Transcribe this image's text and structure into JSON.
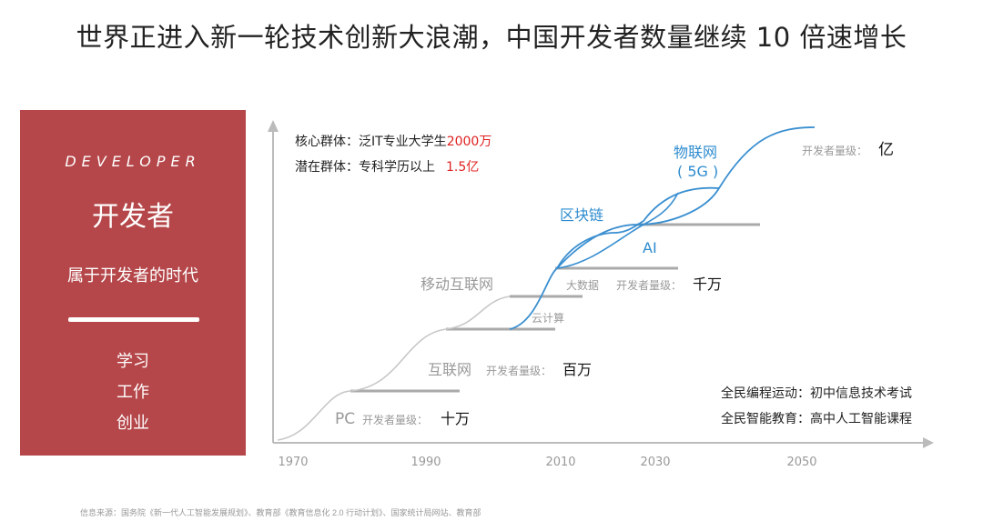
{
  "title": "世界正进入新一轮技术创新大浪潮，中国开发者数量继续 10 倍速增长",
  "panel": {
    "en_label": "DEVELOPER",
    "cn_label": "开发者",
    "era": "属于开发者的时代",
    "words": [
      "学习",
      "工作",
      "创业"
    ]
  },
  "groups": {
    "core_label": "核心群体：泛IT专业大学生",
    "core_value": "2000万",
    "potential_label": "潜在群体：专科学历以上",
    "potential_value": "1.5亿"
  },
  "x_axis": [
    "1970",
    "1990",
    "2010",
    "2030",
    "2050"
  ],
  "stages": {
    "pc": "PC",
    "internet": "互联网",
    "mobile": "移动互联网",
    "cloud": "云计算",
    "bigdata": "大数据",
    "blockchain": "区块链",
    "ai": "AI",
    "iot": "物联网",
    "iot_5g": "( 5G )"
  },
  "scale": {
    "prefix": "开发者量级：",
    "level_1": "十万",
    "level_2": "百万",
    "level_3": "千万",
    "level_4": "亿"
  },
  "notes": {
    "coding": "全民编程运动：初中信息技术考试",
    "ai_edu": "全民智能教育：高中人工智能课程"
  },
  "footnote": "信息来源：国务院《新一代人工智能发展规划》、教育部《教育信息化 2.0 行动计划》、国家统计局网站、教育部",
  "colors": {
    "panel": "#b5474a",
    "curve_blue": "#3a8fd0",
    "curve_grey": "#c8c8c8",
    "axis": "#bbbbbb",
    "accent_red": "#e02020",
    "stage_blue": "#2e8ccf"
  }
}
